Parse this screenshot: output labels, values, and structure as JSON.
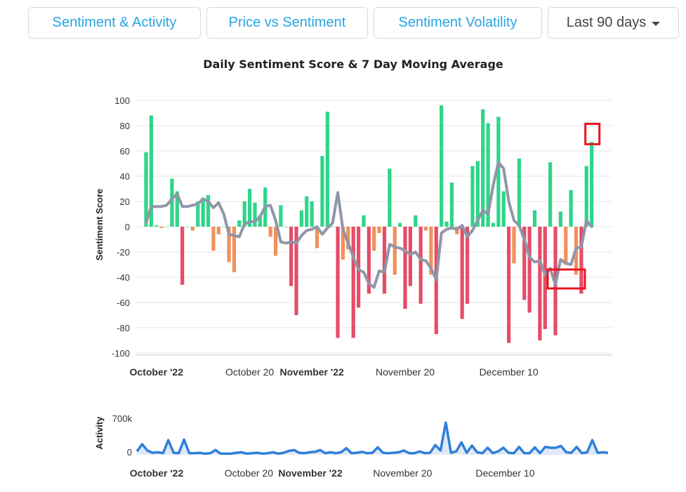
{
  "tabs": [
    {
      "label": "Sentiment & Activity"
    },
    {
      "label": "Price vs Sentiment"
    },
    {
      "label": "Sentiment Volatility"
    }
  ],
  "range": {
    "label": "Last 90 days"
  },
  "colors": {
    "positive": "#2ed58a",
    "mild_negative": "#f0915a",
    "negative": "#e64c68",
    "moving_avg": "#8f96a8",
    "activity": "#2f7fd8",
    "highlight": "#e8141e"
  },
  "chart_data": [
    {
      "type": "bar",
      "title": "Daily Sentiment Score & 7 Day Moving Average",
      "ylabel": "Sentiment Score",
      "xlabel": "",
      "ylim": [
        -100,
        100
      ],
      "yticks": [
        100,
        80,
        60,
        40,
        20,
        0,
        -20,
        -40,
        -60,
        -80,
        -100
      ],
      "x_range": [
        0,
        90
      ],
      "xtick_labels": [
        {
          "label": "October '22",
          "day": 2,
          "bold": true
        },
        {
          "label": "October 20",
          "day": 20,
          "bold": false
        },
        {
          "label": "November '22",
          "day": 32,
          "bold": true
        },
        {
          "label": "November 20",
          "day": 50,
          "bold": false
        },
        {
          "label": "December 10",
          "day": 70,
          "bold": false
        }
      ],
      "series": [
        {
          "name": "Daily Sentiment Score",
          "values": [
            59,
            88,
            1,
            -1,
            0,
            38,
            28,
            -46,
            0,
            -3,
            20,
            23,
            25,
            -19,
            -6,
            0,
            -28,
            -36,
            5,
            20,
            30,
            19,
            9,
            31,
            -8,
            -23,
            17,
            0,
            -47,
            -70,
            13,
            24,
            20,
            -17,
            56,
            91,
            0,
            -88,
            -26,
            -18,
            -88,
            -64,
            9,
            -53,
            -19,
            -5,
            -53,
            46,
            -38,
            3,
            -65,
            -47,
            9,
            -61,
            -3,
            -38,
            -85,
            96,
            4,
            35,
            -6,
            -73,
            -61,
            48,
            52,
            93,
            82,
            3,
            87,
            28,
            -92,
            -29,
            54,
            -58,
            -68,
            13,
            -90,
            -81,
            51,
            -86,
            12,
            -30,
            29,
            -38,
            -53,
            48,
            67
          ],
          "highlighted_index": 86
        },
        {
          "name": "7 Day Moving Average",
          "values": [
            3,
            16,
            16,
            16,
            17,
            22,
            26,
            16,
            16,
            17,
            18,
            22,
            20,
            15,
            19,
            10,
            -6,
            -7,
            -8,
            2,
            4,
            4,
            8,
            16,
            17,
            5,
            -12,
            -13,
            -12,
            -13,
            -7,
            -3,
            -2,
            0,
            -6,
            -1,
            3,
            27,
            -2,
            -13,
            -24,
            -34,
            -36,
            -45,
            -48,
            -35,
            -36,
            -14,
            -16,
            -17,
            -19,
            -22,
            -20,
            -26,
            -27,
            -33,
            -42,
            -5,
            -2,
            -1,
            -2,
            1,
            -8,
            -3,
            5,
            13,
            10,
            33,
            51,
            46,
            20,
            5,
            1,
            -10,
            -24,
            -28,
            -27,
            -38,
            -33,
            -46,
            -26,
            -29,
            -30,
            -17,
            -16,
            5,
            0
          ]
        }
      ],
      "annotations": [
        "highlight box on final bar",
        "highlight box on moving-average dip near December 10"
      ]
    },
    {
      "type": "area",
      "title": "",
      "ylabel": "Activity",
      "ylim": [
        0,
        700000
      ],
      "yticks": [
        "700k",
        "0"
      ],
      "xtick_labels": [
        {
          "label": "October '22",
          "day": 2,
          "bold": true
        },
        {
          "label": "October 20",
          "day": 20,
          "bold": false
        },
        {
          "label": "November '22",
          "day": 32,
          "bold": true
        },
        {
          "label": "November 20",
          "day": 50,
          "bold": false
        },
        {
          "label": "December 10",
          "day": 70,
          "bold": false
        }
      ],
      "series": [
        {
          "name": "Activity",
          "values": [
            60000,
            220000,
            80000,
            30000,
            40000,
            20000,
            310000,
            30000,
            20000,
            320000,
            20000,
            20000,
            30000,
            10000,
            20000,
            90000,
            10000,
            10000,
            10000,
            30000,
            40000,
            10000,
            20000,
            30000,
            10000,
            20000,
            40000,
            10000,
            30000,
            70000,
            90000,
            30000,
            20000,
            40000,
            50000,
            90000,
            20000,
            40000,
            20000,
            40000,
            130000,
            20000,
            30000,
            50000,
            20000,
            30000,
            150000,
            30000,
            20000,
            30000,
            40000,
            80000,
            20000,
            20000,
            60000,
            20000,
            30000,
            200000,
            80000,
            700000,
            30000,
            60000,
            260000,
            30000,
            190000,
            40000,
            20000,
            140000,
            20000,
            60000,
            140000,
            30000,
            20000,
            160000,
            20000,
            20000,
            150000,
            20000,
            160000,
            140000,
            140000,
            180000,
            40000,
            30000,
            160000,
            20000,
            40000,
            310000,
            30000,
            40000,
            30000
          ]
        }
      ]
    }
  ]
}
